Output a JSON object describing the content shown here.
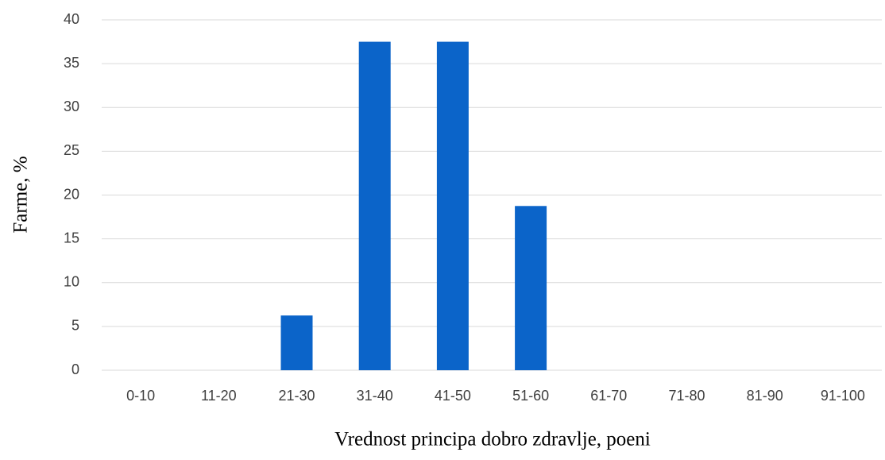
{
  "chart_data": {
    "type": "bar",
    "x_label": "Vrednost principa dobro zdravlje, poeni",
    "y_label": "Farme, %",
    "categories": [
      "0-10",
      "11-20",
      "21-30",
      "31-40",
      "41-50",
      "51-60",
      "61-70",
      "71-80",
      "81-90",
      "91-100"
    ],
    "values": [
      0,
      0,
      6.25,
      37.5,
      37.5,
      18.75,
      0,
      0,
      0,
      0
    ],
    "color": "#0b64c9",
    "ylim": [
      0,
      40
    ],
    "yticks": [
      0,
      5,
      10,
      15,
      20,
      25,
      30,
      35,
      40
    ],
    "grid": true
  }
}
